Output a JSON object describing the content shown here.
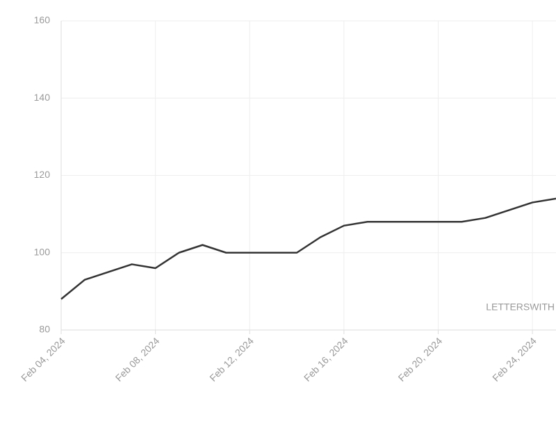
{
  "chart_data": {
    "type": "line",
    "x": [
      "2024-02-04",
      "2024-02-05",
      "2024-02-06",
      "2024-02-07",
      "2024-02-08",
      "2024-02-09",
      "2024-02-10",
      "2024-02-11",
      "2024-02-12",
      "2024-02-13",
      "2024-02-14",
      "2024-02-15",
      "2024-02-16",
      "2024-02-17",
      "2024-02-18",
      "2024-02-19",
      "2024-02-20",
      "2024-02-21",
      "2024-02-22",
      "2024-02-23",
      "2024-02-24",
      "2024-02-25"
    ],
    "values": [
      88,
      93,
      95,
      97,
      96,
      100,
      102,
      100,
      100,
      100,
      100,
      104,
      107,
      108,
      108,
      108,
      108,
      108,
      109,
      111,
      113,
      114
    ],
    "color": "#333333",
    "xlim": [
      "2024-02-04",
      "2024-02-25"
    ],
    "xticks": [
      {
        "value": "2024-02-04",
        "label": "Feb 04, 2024"
      },
      {
        "value": "2024-02-08",
        "label": "Feb 08, 2024"
      },
      {
        "value": "2024-02-12",
        "label": "Feb 12, 2024"
      },
      {
        "value": "2024-02-16",
        "label": "Feb 16, 2024"
      },
      {
        "value": "2024-02-20",
        "label": "Feb 20, 2024"
      },
      {
        "value": "2024-02-24",
        "label": "Feb 24, 2024"
      }
    ],
    "ylim": [
      80,
      160
    ],
    "yticks": [
      80,
      100,
      120,
      140,
      160
    ],
    "grid": true,
    "annotation": "LETTERSWITH"
  }
}
